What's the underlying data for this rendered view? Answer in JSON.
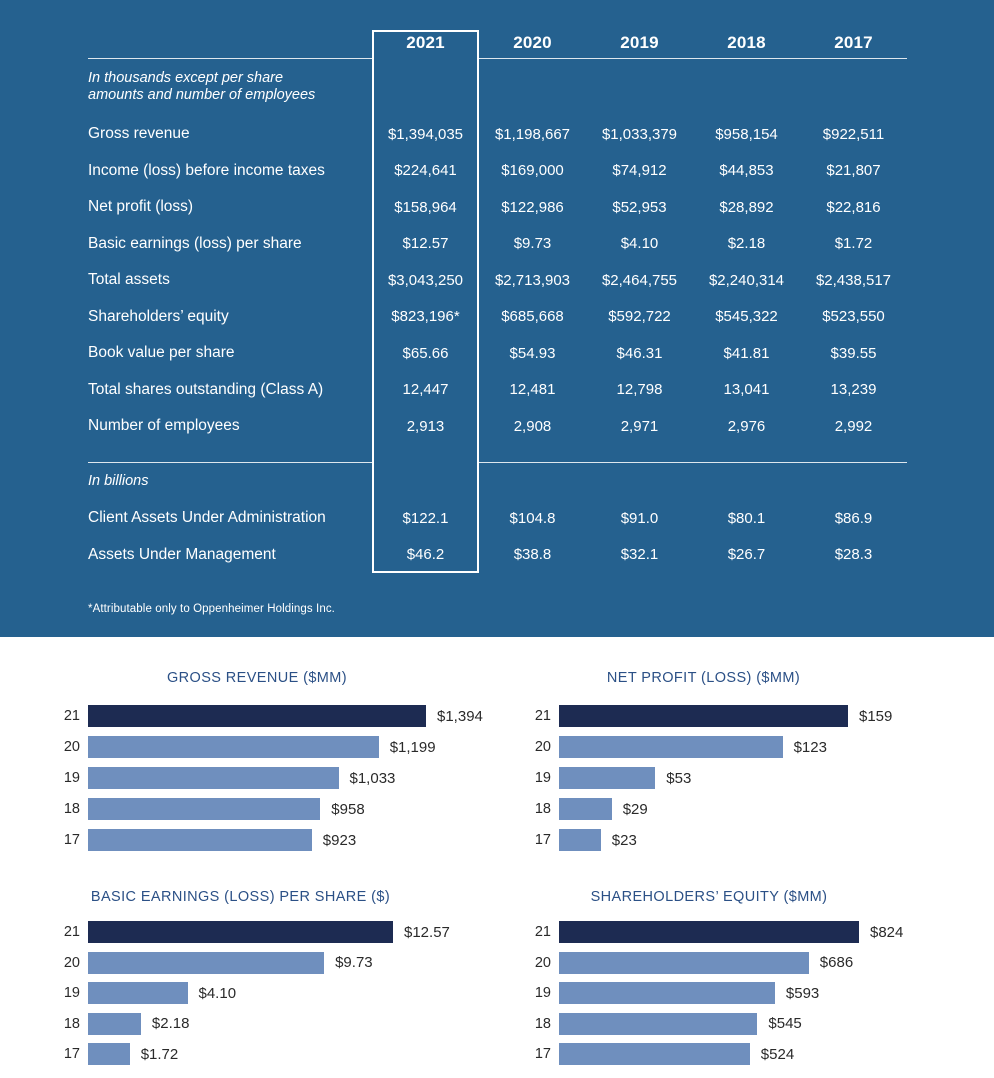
{
  "colors": {
    "panel_bg": "#25618f",
    "bar_highlight": "#1d2b52",
    "bar_normal": "#6f8fbe",
    "chart_title": "#2b5086",
    "table_text": "#ffffff"
  },
  "panel": {
    "years": [
      "2021",
      "2020",
      "2019",
      "2018",
      "2017"
    ],
    "highlight_year": "2021",
    "units_note_line1": "In thousands except per share",
    "units_note_line2": "amounts and number of employees",
    "rows": [
      {
        "label": "Gross revenue",
        "values": [
          "$1,394,035",
          "$1,198,667",
          "$1,033,379",
          "$958,154",
          "$922,511"
        ]
      },
      {
        "label": "Income (loss) before income taxes",
        "values": [
          "$224,641",
          "$169,000",
          "$74,912",
          "$44,853",
          "$21,807"
        ]
      },
      {
        "label": "Net profit (loss)",
        "values": [
          "$158,964",
          "$122,986",
          "$52,953",
          "$28,892",
          "$22,816"
        ]
      },
      {
        "label": "Basic earnings (loss) per share",
        "values": [
          "$12.57",
          "$9.73",
          "$4.10",
          "$2.18",
          "$1.72"
        ]
      },
      {
        "label": "Total assets",
        "values": [
          "$3,043,250",
          "$2,713,903",
          "$2,464,755",
          "$2,240,314",
          "$2,438,517"
        ]
      },
      {
        "label": "Shareholders’ equity",
        "values": [
          "$823,196*",
          "$685,668",
          "$592,722",
          "$545,322",
          "$523,550"
        ]
      },
      {
        "label": "Book value per share",
        "values": [
          "$65.66",
          "$54.93",
          "$46.31",
          "$41.81",
          "$39.55"
        ]
      },
      {
        "label": "Total shares outstanding (Class A)",
        "values": [
          "12,447",
          "12,481",
          "12,798",
          "13,041",
          "13,239"
        ]
      },
      {
        "label": "Number of employees",
        "values": [
          "2,913",
          "2,908",
          "2,971",
          "2,976",
          "2,992"
        ]
      }
    ],
    "billions_note": "In billions",
    "billions_rows": [
      {
        "label": "Client Assets Under Administration",
        "values": [
          "$122.1",
          "$104.8",
          "$91.0",
          "$80.1",
          "$86.9"
        ]
      },
      {
        "label": "Assets Under Management",
        "values": [
          "$46.2",
          "$38.8",
          "$32.1",
          "$26.7",
          "$28.3"
        ]
      }
    ],
    "footnote": "*Attributable only to Oppenheimer Holdings Inc."
  },
  "chart_data": [
    {
      "type": "bar",
      "orientation": "horizontal",
      "title": "GROSS REVENUE ($MM)",
      "categories": [
        "21",
        "20",
        "19",
        "18",
        "17"
      ],
      "values": [
        1394,
        1199,
        1033,
        958,
        923
      ],
      "value_labels": [
        "$1,394",
        "$1,199",
        "$1,033",
        "$958",
        "$923"
      ],
      "highlight_index": 0,
      "xlim": [
        0,
        1394
      ],
      "grid": false,
      "legend": false
    },
    {
      "type": "bar",
      "orientation": "horizontal",
      "title": "NET PROFIT (LOSS) ($MM)",
      "categories": [
        "21",
        "20",
        "19",
        "18",
        "17"
      ],
      "values": [
        159,
        123,
        53,
        29,
        23
      ],
      "value_labels": [
        "$159",
        "$123",
        "$53",
        "$29",
        "$23"
      ],
      "highlight_index": 0,
      "xlim": [
        0,
        159
      ],
      "grid": false,
      "legend": false
    },
    {
      "type": "bar",
      "orientation": "horizontal",
      "title": "BASIC EARNINGS (LOSS) PER SHARE ($)",
      "categories": [
        "21",
        "20",
        "19",
        "18",
        "17"
      ],
      "values": [
        12.57,
        9.73,
        4.1,
        2.18,
        1.72
      ],
      "value_labels": [
        "$12.57",
        "$9.73",
        "$4.10",
        "$2.18",
        "$1.72"
      ],
      "highlight_index": 0,
      "xlim": [
        0,
        12.57
      ],
      "grid": false,
      "legend": false
    },
    {
      "type": "bar",
      "orientation": "horizontal",
      "title": "SHAREHOLDERS’ EQUITY ($MM)",
      "categories": [
        "21",
        "20",
        "19",
        "18",
        "17"
      ],
      "values": [
        824,
        686,
        593,
        545,
        524
      ],
      "value_labels": [
        "$824",
        "$686",
        "$593",
        "$545",
        "$524"
      ],
      "highlight_index": 0,
      "xlim": [
        0,
        824
      ],
      "grid": false,
      "legend": false
    }
  ]
}
